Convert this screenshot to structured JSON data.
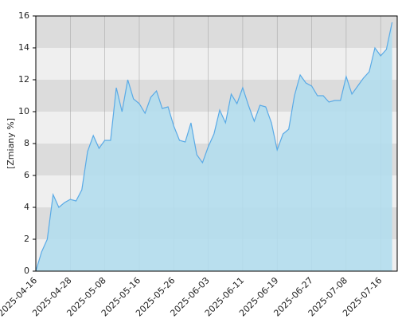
{
  "chart_data": {
    "type": "area",
    "y_label": "[Zmiany %]",
    "categories": [
      "2025-04-16",
      null,
      null,
      null,
      null,
      null,
      "2025-04-28",
      null,
      null,
      null,
      null,
      null,
      "2025-05-08",
      null,
      null,
      null,
      null,
      null,
      "2025-05-16",
      null,
      null,
      null,
      null,
      null,
      "2025-05-26",
      null,
      null,
      null,
      null,
      null,
      "2025-06-03",
      null,
      null,
      null,
      null,
      null,
      "2025-06-11",
      null,
      null,
      null,
      null,
      null,
      "2025-06-19",
      null,
      null,
      null,
      null,
      null,
      "2025-06-27",
      null,
      null,
      null,
      null,
      null,
      "2025-07-08",
      null,
      null,
      null,
      null,
      null,
      "2025-07-16",
      null,
      null
    ],
    "values": [
      0,
      1.2,
      2.0,
      4.8,
      4.0,
      4.3,
      4.5,
      4.4,
      5.1,
      7.5,
      8.5,
      7.7,
      8.2,
      8.2,
      11.5,
      10.0,
      12.0,
      10.8,
      10.5,
      9.9,
      10.9,
      11.3,
      10.2,
      10.3,
      9.1,
      8.2,
      8.1,
      9.3,
      7.3,
      6.8,
      7.8,
      8.6,
      10.1,
      9.3,
      11.1,
      10.5,
      11.5,
      10.4,
      9.4,
      10.4,
      10.3,
      9.3,
      7.6,
      8.6,
      8.9,
      11.0,
      12.3,
      11.8,
      11.6,
      11.0,
      11.0,
      10.6,
      10.7,
      10.7,
      12.2,
      11.1,
      11.6,
      12.1,
      12.5,
      14.0,
      13.5,
      13.9,
      15.6
    ],
    "color": "#5aaae6",
    "fill": "#b3dded",
    "band_colors": [
      "#efefef",
      "#dcdcdc"
    ],
    "ylim": [
      0,
      16
    ],
    "yticks": [
      0,
      2,
      4,
      6,
      8,
      10,
      12,
      14,
      16
    ],
    "grid": true
  }
}
